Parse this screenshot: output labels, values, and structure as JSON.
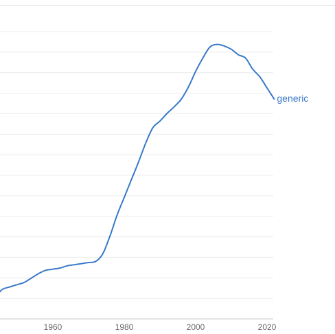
{
  "chart_data": {
    "type": "line",
    "title": "",
    "xlabel": "",
    "ylabel": "",
    "xlim": [
      1945,
      2022
    ],
    "ylim": [
      0,
      13
    ],
    "grid": true,
    "x_ticks": [
      1960,
      1980,
      2000,
      2020
    ],
    "series": [
      {
        "name": "generic",
        "color": "#3779c9",
        "x": [
          1945,
          1946,
          1948,
          1950,
          1952,
          1954,
          1956,
          1958,
          1960,
          1962,
          1964,
          1966,
          1968,
          1970,
          1972,
          1974,
          1976,
          1978,
          1980,
          1982,
          1984,
          1986,
          1988,
          1990,
          1992,
          1994,
          1996,
          1998,
          2000,
          2002,
          2004,
          2006,
          2008,
          2010,
          2012,
          2014,
          2016,
          2018,
          2020,
          2022
        ],
        "y": [
          1.2,
          1.35,
          1.45,
          1.55,
          1.65,
          1.85,
          2.05,
          2.2,
          2.25,
          2.3,
          2.4,
          2.45,
          2.5,
          2.55,
          2.6,
          2.95,
          3.75,
          4.7,
          5.5,
          6.3,
          7.1,
          7.95,
          8.65,
          8.95,
          9.3,
          9.6,
          9.95,
          10.5,
          11.2,
          11.8,
          12.3,
          12.42,
          12.35,
          12.2,
          11.95,
          11.8,
          11.3,
          10.95,
          10.45,
          9.95
        ]
      }
    ]
  }
}
